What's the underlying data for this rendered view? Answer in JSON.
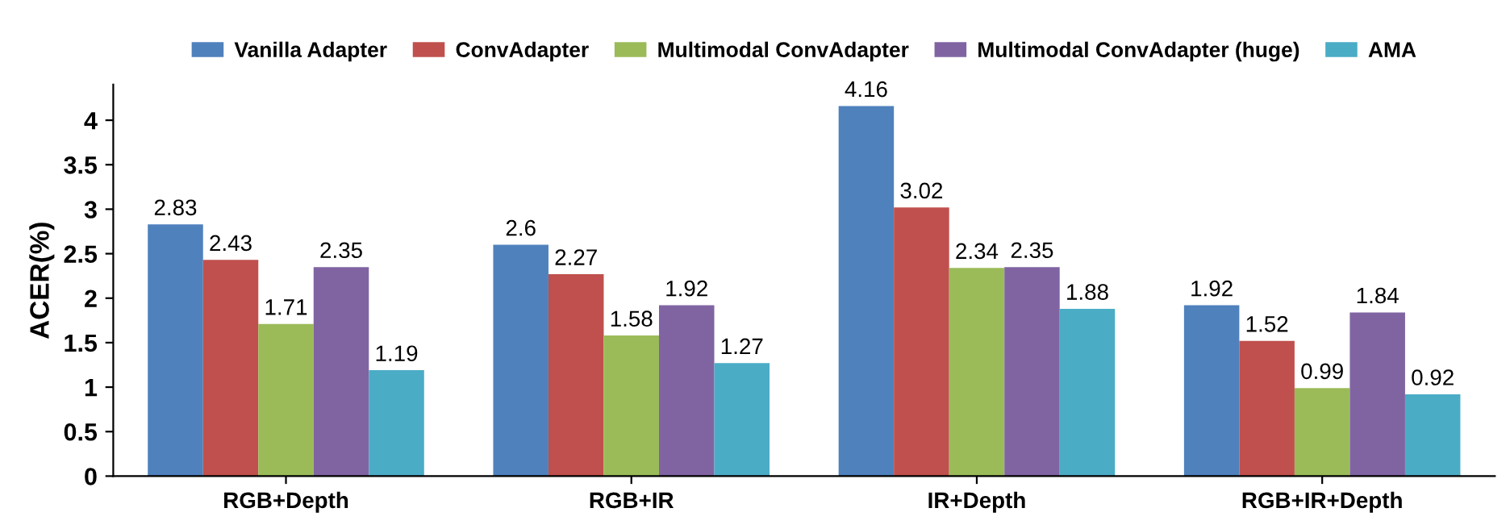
{
  "chart_data": {
    "type": "bar",
    "ylabel": "ACER(%)",
    "categories": [
      "RGB+Depth",
      "RGB+IR",
      "IR+Depth",
      "RGB+IR+Depth"
    ],
    "series": [
      {
        "name": "Vanilla Adapter",
        "color": "#4f81bd",
        "values": [
          2.83,
          2.6,
          4.16,
          1.92
        ]
      },
      {
        "name": "ConvAdapter",
        "color": "#c0504d",
        "values": [
          2.43,
          2.27,
          3.02,
          1.52
        ]
      },
      {
        "name": "Multimodal ConvAdapter",
        "color": "#9bbb59",
        "values": [
          1.71,
          1.58,
          2.34,
          0.99
        ]
      },
      {
        "name": "Multimodal ConvAdapter (huge)",
        "color": "#8064a2",
        "values": [
          2.35,
          1.92,
          2.35,
          1.84
        ]
      },
      {
        "name": "AMA",
        "color": "#4bacc6",
        "values": [
          1.19,
          1.27,
          1.88,
          0.92
        ]
      }
    ],
    "ylim": [
      0,
      4.4
    ],
    "yticks": [
      0,
      0.5,
      1,
      1.5,
      2,
      2.5,
      3,
      3.5,
      4
    ],
    "data_labels": true,
    "legend": "top",
    "grid": false
  }
}
